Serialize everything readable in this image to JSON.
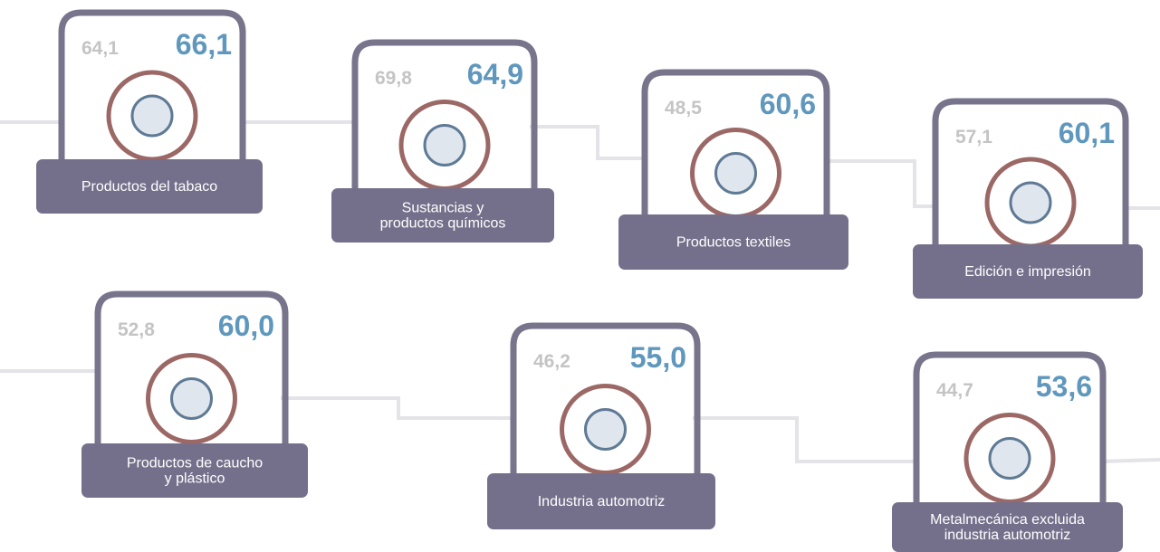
{
  "items": [
    {
      "previous": "64,1",
      "current": "66,1",
      "label": [
        "Productos del tabaco"
      ]
    },
    {
      "previous": "69,8",
      "current": "64,9",
      "label": [
        "Sustancias y",
        "productos químicos"
      ]
    },
    {
      "previous": "48,5",
      "current": "60,6",
      "label": [
        "Productos textiles"
      ]
    },
    {
      "previous": "57,1",
      "current": "60,1",
      "label": [
        "Edición e impresión"
      ]
    },
    {
      "previous": "52,8",
      "current": "60,0",
      "label": [
        "Productos de caucho",
        "y plástico"
      ]
    },
    {
      "previous": "46,2",
      "current": "55,0",
      "label": [
        "Industria automotriz"
      ]
    },
    {
      "previous": "44,7",
      "current": "53,6",
      "label": [
        "Metalmecánica excluida",
        "industria automotriz"
      ]
    }
  ]
}
